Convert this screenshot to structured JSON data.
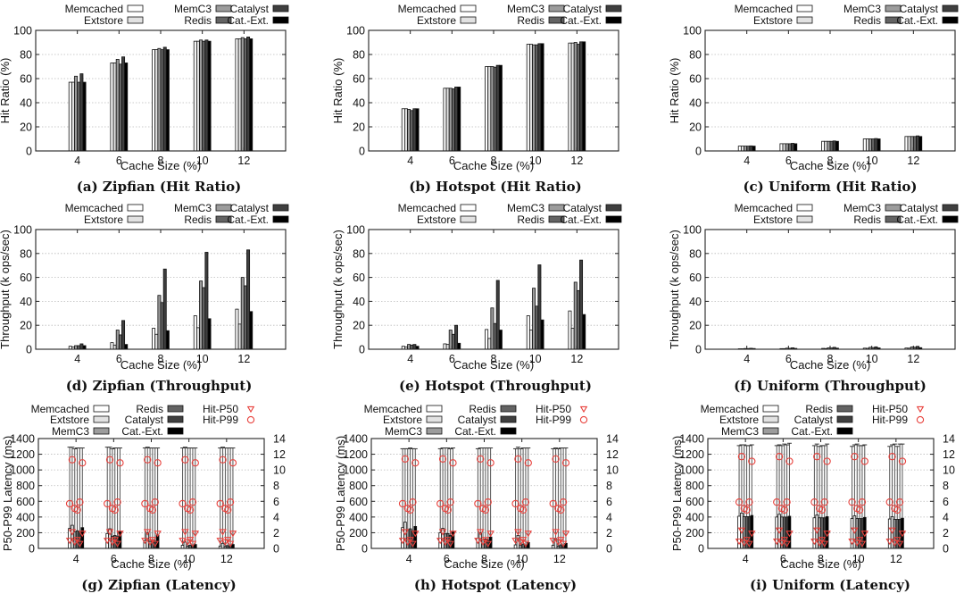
{
  "figure": {
    "series_names": [
      "Memcached",
      "Extstore",
      "MemC3",
      "Redis",
      "Catalyst",
      "Cat.-Ext."
    ],
    "series_colors": [
      "#ffffff",
      "#e2e2e2",
      "#9c9c9c",
      "#636363",
      "#3f3f3f",
      "#000000"
    ],
    "marker_color": "#e8413c",
    "marker_labels": [
      "Hit-P50",
      "Hit-P99"
    ]
  },
  "chart_data": [
    {
      "id": "a",
      "type": "bar",
      "caption": "(a) Zipfian (Hit Ratio)",
      "xlabel": "Cache Size (%)",
      "ylabel": "Hit Ratio (%)",
      "categories": [
        "4",
        "6",
        "8",
        "10",
        "12"
      ],
      "ylim": [
        0,
        100
      ],
      "yticks": [
        0,
        20,
        40,
        60,
        80,
        100
      ],
      "legend": "top",
      "grid": true,
      "series": [
        {
          "name": "Memcached",
          "values": [
            57,
            73,
            84,
            91,
            93
          ]
        },
        {
          "name": "Extstore",
          "values": [
            57,
            73,
            84,
            91,
            93
          ]
        },
        {
          "name": "MemC3",
          "values": [
            62,
            76,
            85,
            92,
            94
          ]
        },
        {
          "name": "Redis",
          "values": [
            57,
            72,
            84,
            91,
            93
          ]
        },
        {
          "name": "Catalyst",
          "values": [
            64,
            78,
            86,
            92,
            94.5
          ]
        },
        {
          "name": "Cat.-Ext.",
          "values": [
            57,
            73,
            84,
            91,
            93
          ]
        }
      ]
    },
    {
      "id": "b",
      "type": "bar",
      "caption": "(b) Hotspot (Hit Ratio)",
      "xlabel": "Cache Size (%)",
      "ylabel": "Hit Ratio (%)",
      "categories": [
        "4",
        "6",
        "8",
        "10",
        "12"
      ],
      "ylim": [
        0,
        100
      ],
      "yticks": [
        0,
        20,
        40,
        60,
        80,
        100
      ],
      "legend": "top",
      "grid": true,
      "series": [
        {
          "name": "Memcached",
          "values": [
            35,
            52,
            70,
            88.5,
            89.5
          ]
        },
        {
          "name": "Extstore",
          "values": [
            35,
            52,
            70,
            88.5,
            89.5
          ]
        },
        {
          "name": "MemC3",
          "values": [
            34.5,
            52,
            70,
            88,
            90
          ]
        },
        {
          "name": "Redis",
          "values": [
            33.5,
            51.5,
            69.5,
            88,
            88.5
          ]
        },
        {
          "name": "Catalyst",
          "values": [
            35,
            53,
            71,
            89,
            90.5
          ]
        },
        {
          "name": "Cat.-Ext.",
          "values": [
            35,
            53,
            71,
            89,
            90.5
          ]
        }
      ]
    },
    {
      "id": "c",
      "type": "bar",
      "caption": "(c) Uniform (Hit Ratio)",
      "xlabel": "Cache Size (%)",
      "ylabel": "Hit Ratio (%)",
      "categories": [
        "4",
        "6",
        "8",
        "10",
        "12"
      ],
      "ylim": [
        0,
        100
      ],
      "yticks": [
        0,
        20,
        40,
        60,
        80,
        100
      ],
      "legend": "top",
      "grid": true,
      "series": [
        {
          "name": "Memcached",
          "values": [
            4,
            6,
            8,
            10,
            12
          ]
        },
        {
          "name": "Extstore",
          "values": [
            4,
            6,
            8,
            10,
            12
          ]
        },
        {
          "name": "MemC3",
          "values": [
            4,
            6,
            8,
            10,
            12
          ]
        },
        {
          "name": "Redis",
          "values": [
            4,
            6,
            8,
            10,
            12
          ]
        },
        {
          "name": "Catalyst",
          "values": [
            4.2,
            6.3,
            8.3,
            10.3,
            12.5
          ]
        },
        {
          "name": "Cat.-Ext.",
          "values": [
            4,
            6,
            8,
            10,
            12
          ]
        }
      ]
    },
    {
      "id": "d",
      "type": "bar",
      "caption": "(d) Zipfian (Throughput)",
      "xlabel": "Cache Size (%)",
      "ylabel": "Throughput (k ops/sec)",
      "categories": [
        "4",
        "6",
        "8",
        "10",
        "12"
      ],
      "ylim": [
        0,
        100
      ],
      "yticks": [
        0,
        20,
        40,
        60,
        80,
        100
      ],
      "legend": "top",
      "grid": true,
      "series": [
        {
          "name": "Memcached",
          "values": [
            2.5,
            5.5,
            17.5,
            28,
            33.5
          ]
        },
        {
          "name": "Extstore",
          "values": [
            2,
            3.5,
            12.5,
            18,
            21
          ]
        },
        {
          "name": "MemC3",
          "values": [
            3,
            16,
            45,
            57,
            60
          ]
        },
        {
          "name": "Redis",
          "values": [
            3,
            12,
            39,
            51.5,
            53
          ]
        },
        {
          "name": "Catalyst",
          "values": [
            4.5,
            24,
            67,
            81,
            83
          ]
        },
        {
          "name": "Cat.-Ext.",
          "values": [
            3,
            4,
            15.5,
            25.5,
            31.5
          ]
        }
      ]
    },
    {
      "id": "e",
      "type": "bar",
      "caption": "(e) Hotspot (Throughput)",
      "xlabel": "Cache Size (%)",
      "ylabel": "Throughput (k ops/sec)",
      "categories": [
        "4",
        "6",
        "8",
        "10",
        "12"
      ],
      "ylim": [
        0,
        100
      ],
      "yticks": [
        0,
        20,
        40,
        60,
        80,
        100
      ],
      "legend": "top",
      "grid": true,
      "series": [
        {
          "name": "Memcached",
          "values": [
            2.5,
            4.5,
            16.5,
            28,
            32
          ]
        },
        {
          "name": "Extstore",
          "values": [
            2,
            4,
            9,
            16,
            17.5
          ]
        },
        {
          "name": "MemC3",
          "values": [
            4,
            16,
            34.5,
            51,
            56
          ]
        },
        {
          "name": "Redis",
          "values": [
            3.5,
            12.5,
            21.5,
            36,
            49
          ]
        },
        {
          "name": "Catalyst",
          "values": [
            4,
            20,
            57.5,
            70.5,
            74.5
          ]
        },
        {
          "name": "Cat.-Ext.",
          "values": [
            2.5,
            5,
            16,
            24.5,
            29
          ]
        }
      ]
    },
    {
      "id": "f",
      "type": "bar",
      "caption": "(f) Uniform (Throughput)",
      "xlabel": "Cache Size (%)",
      "ylabel": "Throughput (k ops/sec)",
      "categories": [
        "4",
        "6",
        "8",
        "10",
        "12"
      ],
      "ylim": [
        0,
        100
      ],
      "yticks": [
        0,
        20,
        40,
        60,
        80,
        100
      ],
      "legend": "top",
      "grid": true,
      "series": [
        {
          "name": "Memcached",
          "values": [
            0.4,
            0.5,
            0.7,
            0.9,
            1.0
          ]
        },
        {
          "name": "Extstore",
          "values": [
            0.4,
            0.5,
            0.6,
            0.8,
            0.9
          ]
        },
        {
          "name": "MemC3",
          "values": [
            0.6,
            0.9,
            1.2,
            1.6,
            1.9
          ]
        },
        {
          "name": "Redis",
          "values": [
            0.6,
            0.8,
            1.1,
            1.4,
            1.7
          ]
        },
        {
          "name": "Catalyst",
          "values": [
            0.8,
            1.2,
            1.6,
            2.0,
            2.4
          ]
        },
        {
          "name": "Cat.-Ext.",
          "values": [
            0.6,
            0.7,
            0.9,
            1.1,
            1.3
          ]
        }
      ]
    },
    {
      "id": "g",
      "type": "bar",
      "caption": "(g) Zipfian (Latency)",
      "xlabel": "Cache Size (%)",
      "ylabel": "P50-P99 Latency (ms)",
      "categories": [
        "4",
        "6",
        "8",
        "10",
        "12"
      ],
      "ylim": [
        0,
        1400
      ],
      "yticks": [
        0,
        200,
        400,
        600,
        800,
        1000,
        1200,
        1400
      ],
      "y2lim": [
        0,
        14
      ],
      "y2ticks": [
        0,
        2,
        4,
        6,
        8,
        10,
        12,
        14
      ],
      "legend": "top",
      "grid": true,
      "series": [
        {
          "name": "Memcached",
          "values": [
            255,
            190,
            100,
            40,
            30
          ],
          "p99": [
            1290,
            1290,
            1280,
            1280,
            1280
          ]
        },
        {
          "name": "Extstore",
          "values": [
            295,
            250,
            200,
            80,
            65
          ],
          "p99": [
            1290,
            1290,
            1290,
            1290,
            1290
          ]
        },
        {
          "name": "MemC3",
          "values": [
            210,
            155,
            90,
            30,
            25
          ],
          "p99": [
            1270,
            1270,
            1280,
            1280,
            1280
          ]
        },
        {
          "name": "Redis",
          "values": [
            225,
            165,
            110,
            40,
            35
          ],
          "p99": [
            1280,
            1280,
            1280,
            1280,
            1280
          ]
        },
        {
          "name": "Catalyst",
          "values": [
            210,
            150,
            95,
            30,
            30
          ],
          "p99": [
            1280,
            1280,
            1280,
            1280,
            1280
          ]
        },
        {
          "name": "Cat.-Ext.",
          "values": [
            265,
            220,
            170,
            50,
            50
          ],
          "p99": [
            1280,
            1280,
            1280,
            1280,
            1280
          ]
        }
      ],
      "hit_p50": [
        [
          1.0,
          2.1,
          0.8,
          1.1,
          0.6,
          1.9
        ],
        [
          1.0,
          2.1,
          0.8,
          1.1,
          0.6,
          1.9
        ],
        [
          1.0,
          2.1,
          0.8,
          1.1,
          0.6,
          1.9
        ],
        [
          1.0,
          2.1,
          0.8,
          1.1,
          0.6,
          1.9
        ],
        [
          1.0,
          2.1,
          0.8,
          1.1,
          0.6,
          1.9
        ]
      ],
      "hit_p99": [
        [
          5.7,
          11.3,
          5.1,
          4.9,
          5.9,
          10.9
        ],
        [
          5.7,
          11.3,
          5.1,
          4.9,
          5.9,
          10.9
        ],
        [
          5.7,
          11.3,
          5.1,
          4.9,
          5.9,
          10.9
        ],
        [
          5.7,
          11.3,
          5.1,
          4.9,
          5.9,
          10.9
        ],
        [
          5.7,
          11.3,
          5.1,
          4.9,
          5.9,
          10.9
        ]
      ]
    },
    {
      "id": "h",
      "type": "bar",
      "caption": "(h) Hotspot (Latency)",
      "xlabel": "Cache Size (%)",
      "ylabel": "P50-P99 Latency (ms)",
      "categories": [
        "4",
        "6",
        "8",
        "10",
        "12"
      ],
      "ylim": [
        0,
        1400
      ],
      "yticks": [
        0,
        200,
        400,
        600,
        800,
        1000,
        1200,
        1400
      ],
      "y2lim": [
        0,
        14
      ],
      "y2ticks": [
        0,
        2,
        4,
        6,
        8,
        10,
        12,
        14
      ],
      "legend": "top",
      "grid": true,
      "series": [
        {
          "name": "Memcached",
          "values": [
            265,
            200,
            130,
            45,
            40
          ],
          "p99": [
            1270,
            1270,
            1270,
            1270,
            1270
          ]
        },
        {
          "name": "Extstore",
          "values": [
            335,
            255,
            200,
            165,
            125
          ],
          "p99": [
            1270,
            1280,
            1280,
            1290,
            1280
          ]
        },
        {
          "name": "MemC3",
          "values": [
            240,
            185,
            110,
            40,
            30
          ],
          "p99": [
            1270,
            1280,
            1280,
            1270,
            1270
          ]
        },
        {
          "name": "Redis",
          "values": [
            250,
            190,
            120,
            55,
            45
          ],
          "p99": [
            1280,
            1280,
            1280,
            1280,
            1280
          ]
        },
        {
          "name": "Catalyst",
          "values": [
            225,
            165,
            105,
            40,
            30
          ],
          "p99": [
            1270,
            1270,
            1280,
            1280,
            1280
          ]
        },
        {
          "name": "Cat.-Ext.",
          "values": [
            280,
            210,
            145,
            75,
            65
          ],
          "p99": [
            1270,
            1280,
            1280,
            1280,
            1280
          ]
        }
      ],
      "hit_p50": [
        [
          1.0,
          2.1,
          0.8,
          1.1,
          0.6,
          1.9
        ],
        [
          1.0,
          2.1,
          0.8,
          1.1,
          0.6,
          1.9
        ],
        [
          1.0,
          2.1,
          0.8,
          1.1,
          0.6,
          1.9
        ],
        [
          1.0,
          2.1,
          0.8,
          1.1,
          0.6,
          1.9
        ],
        [
          1.0,
          2.1,
          0.8,
          1.1,
          0.6,
          1.9
        ]
      ],
      "hit_p99": [
        [
          5.7,
          11.4,
          5.1,
          4.9,
          5.9,
          10.9
        ],
        [
          5.7,
          11.4,
          5.1,
          4.9,
          5.9,
          10.9
        ],
        [
          5.7,
          11.4,
          5.1,
          4.9,
          5.9,
          10.9
        ],
        [
          5.7,
          11.4,
          5.1,
          4.9,
          5.9,
          10.9
        ],
        [
          5.7,
          11.4,
          5.1,
          4.9,
          5.9,
          10.9
        ]
      ]
    },
    {
      "id": "i",
      "type": "bar",
      "caption": "(i) Uniform (Latency)",
      "xlabel": "Cache Size (%)",
      "ylabel": "P50-P99 Latency (ms)",
      "categories": [
        "4",
        "6",
        "8",
        "10",
        "12"
      ],
      "ylim": [
        0,
        1400
      ],
      "yticks": [
        0,
        200,
        400,
        600,
        800,
        1000,
        1200,
        1400
      ],
      "y2lim": [
        0,
        14
      ],
      "y2ticks": [
        0,
        2,
        4,
        6,
        8,
        10,
        12,
        14
      ],
      "legend": "top",
      "grid": true,
      "series": [
        {
          "name": "Memcached",
          "values": [
            410,
            400,
            390,
            380,
            375
          ],
          "p99": [
            1310,
            1310,
            1310,
            1300,
            1300
          ]
        },
        {
          "name": "Extstore",
          "values": [
            450,
            435,
            425,
            415,
            405
          ],
          "p99": [
            1320,
            1320,
            1330,
            1320,
            1320
          ]
        },
        {
          "name": "MemC3",
          "values": [
            405,
            400,
            390,
            380,
            370
          ],
          "p99": [
            1320,
            1310,
            1300,
            1330,
            1330
          ]
        },
        {
          "name": "Redis",
          "values": [
            405,
            400,
            390,
            380,
            370
          ],
          "p99": [
            1310,
            1330,
            1310,
            1310,
            1300
          ]
        },
        {
          "name": "Catalyst",
          "values": [
            405,
            400,
            390,
            380,
            370
          ],
          "p99": [
            1310,
            1320,
            1310,
            1310,
            1330
          ]
        },
        {
          "name": "Cat.-Ext.",
          "values": [
            420,
            410,
            405,
            395,
            385
          ],
          "p99": [
            1320,
            1340,
            1330,
            1320,
            1330
          ]
        }
      ],
      "hit_p50": [
        [
          0.9,
          2.3,
          0.7,
          1.1,
          0.6,
          1.9
        ],
        [
          0.9,
          2.3,
          0.7,
          1.1,
          0.6,
          1.9
        ],
        [
          0.9,
          2.3,
          0.7,
          1.1,
          0.6,
          1.9
        ],
        [
          0.9,
          2.3,
          0.7,
          1.1,
          0.6,
          1.9
        ],
        [
          0.9,
          2.3,
          0.7,
          1.1,
          0.6,
          1.9
        ]
      ],
      "hit_p99": [
        [
          5.9,
          11.7,
          5.1,
          4.9,
          5.9,
          11.1
        ],
        [
          5.9,
          11.7,
          5.1,
          4.9,
          5.9,
          11.1
        ],
        [
          5.9,
          11.7,
          5.1,
          4.9,
          5.9,
          11.1
        ],
        [
          5.9,
          11.7,
          5.1,
          4.9,
          5.9,
          11.1
        ],
        [
          5.9,
          11.7,
          5.1,
          4.9,
          5.9,
          11.1
        ]
      ]
    }
  ]
}
